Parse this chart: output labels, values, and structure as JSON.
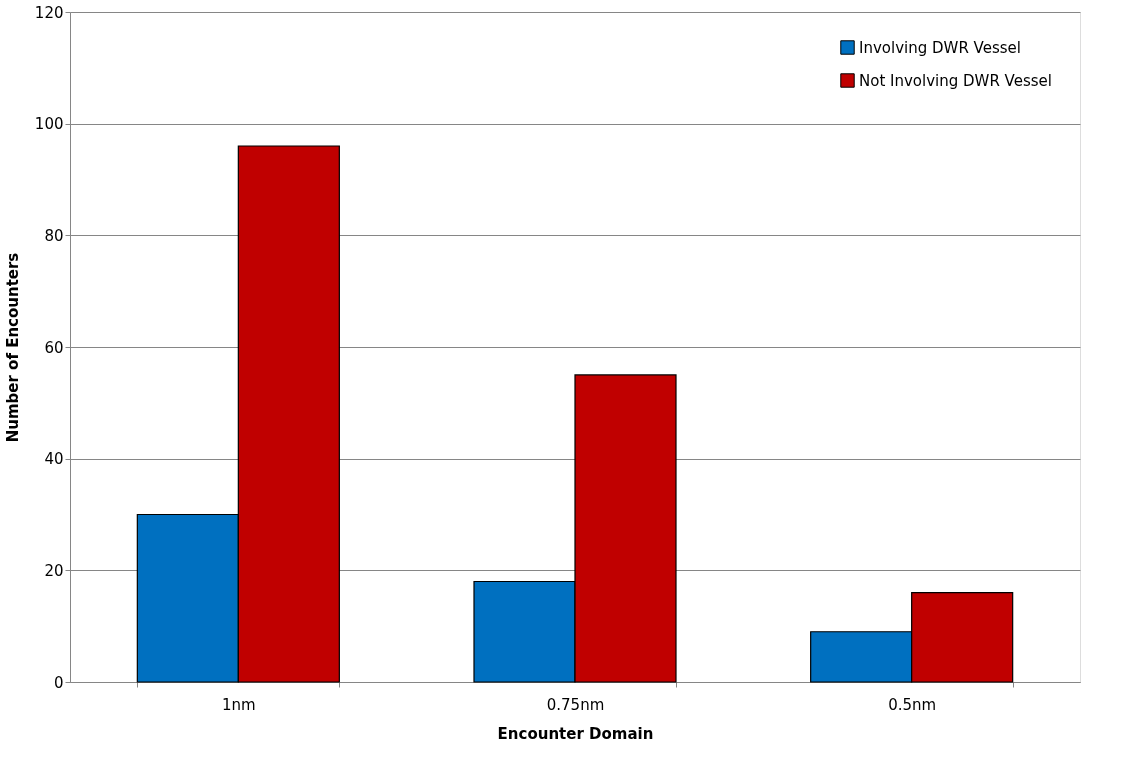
{
  "chart_data": {
    "type": "bar",
    "xlabel": "Encounter Domain",
    "ylabel": "Number of Encounters",
    "categories": [
      "1nm",
      "0.75nm",
      "0.5nm"
    ],
    "series": [
      {
        "name": "Involving DWR Vessel",
        "color": "#0070c0",
        "values": [
          30,
          18,
          9
        ]
      },
      {
        "name": "Not Involving DWR Vessel",
        "color": "#c00000",
        "values": [
          96,
          55,
          16
        ]
      }
    ],
    "ylim": [
      0,
      120
    ],
    "yticks": [
      0,
      20,
      40,
      60,
      80,
      100,
      120
    ],
    "grid": "y",
    "legend": "top right"
  }
}
